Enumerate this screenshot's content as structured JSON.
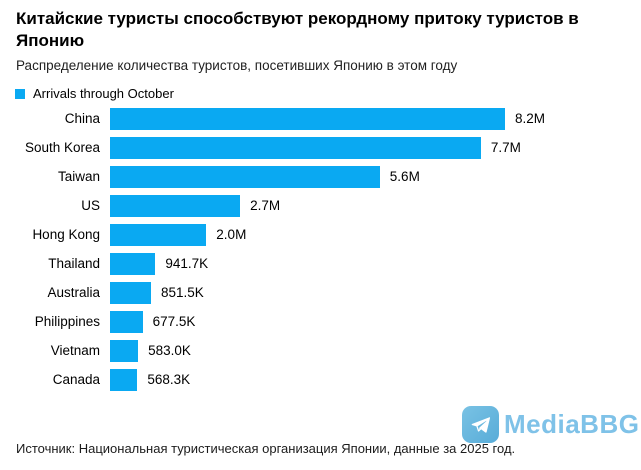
{
  "header": {
    "title": "Китайские туристы способствуют рекордному притоку туристов в Японию",
    "subtitle": "Распределение количества туристов, посетивших Японию в этом году"
  },
  "legend": {
    "label": "Arrivals through October",
    "color": "#0aa9f2"
  },
  "chart_data": {
    "type": "bar",
    "orientation": "horizontal",
    "title": "Китайские туристы способствуют рекордному притоку туристов в Японию",
    "subtitle": "Распределение количества туристов, посетивших Японию в этом году",
    "legend_entries": [
      "Arrivals through October"
    ],
    "legend_position": "top-left",
    "grid": false,
    "bar_color": "#0aa9f2",
    "categories": [
      "China",
      "South Korea",
      "Taiwan",
      "US",
      "Hong Kong",
      "Thailand",
      "Australia",
      "Philippines",
      "Vietnam",
      "Canada"
    ],
    "values": [
      8200000,
      7700000,
      5600000,
      2700000,
      2000000,
      941700,
      851500,
      677500,
      583000,
      568300
    ],
    "value_labels": [
      "8.2M",
      "7.7M",
      "5.6M",
      "2.7M",
      "2.0M",
      "941.7K",
      "851.5K",
      "677.5K",
      "583.0K",
      "568.3K"
    ],
    "value_labels_position": "right-of-bar",
    "xlim": [
      0,
      8200000
    ]
  },
  "footer": {
    "source": "Источник: Национальная туристическая организация Японии, данные за 2025 год."
  },
  "watermark": {
    "text": "MediaBBG",
    "icon": "telegram-plane-icon",
    "text_color": "#7fc2e8",
    "icon_color": "#62b4dd"
  }
}
